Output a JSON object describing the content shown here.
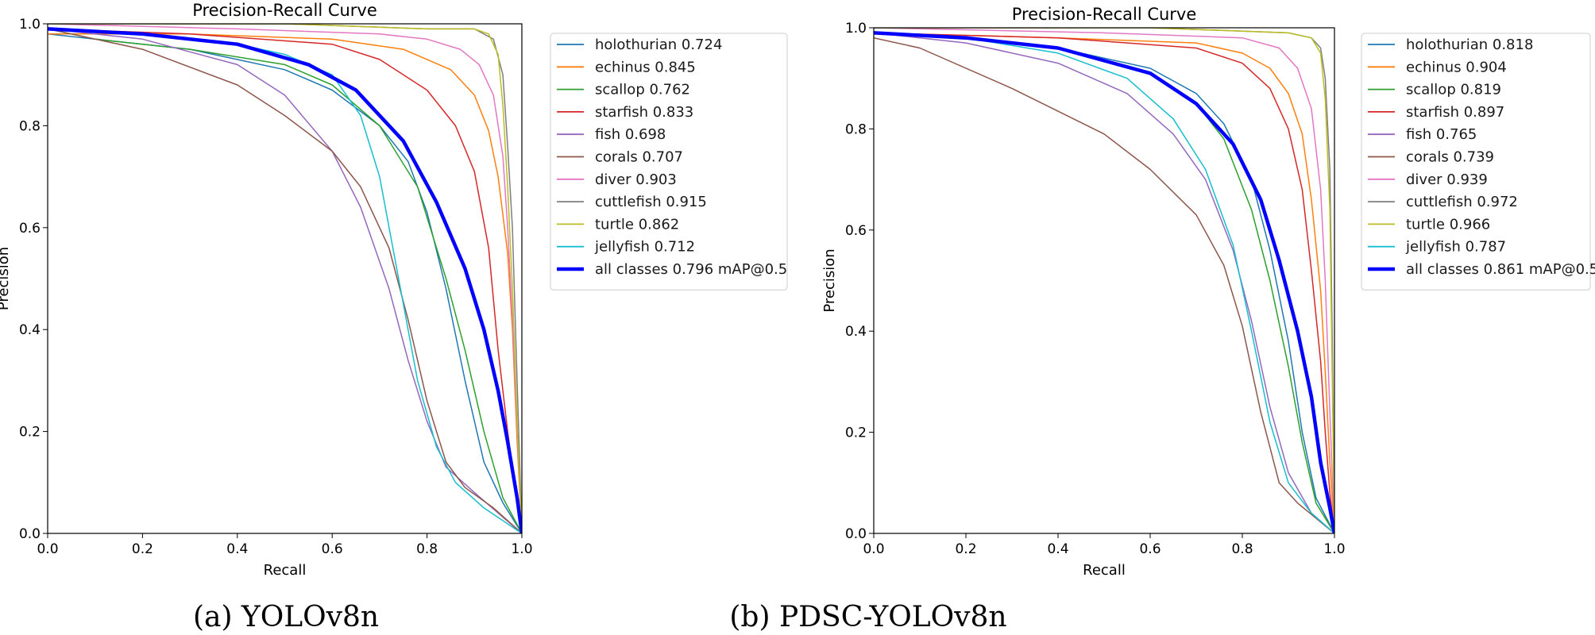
{
  "captions": [
    "(a) YOLOv8n",
    "(b) PDSC-YOLOv8n"
  ],
  "chart_data": [
    {
      "type": "line",
      "title": "Precision-Recall Curve",
      "xlabel": "Recall",
      "ylabel": "Precision",
      "xlim": [
        0,
        1
      ],
      "ylim": [
        0,
        1
      ],
      "xticks": [
        "0.0",
        "0.2",
        "0.4",
        "0.6",
        "0.8",
        "1.0"
      ],
      "yticks": [
        "0.0",
        "0.2",
        "0.4",
        "0.6",
        "0.8",
        "1.0"
      ],
      "legend_position": "outside-right-top",
      "series": [
        {
          "name": "holothurian",
          "label": "holothurian 0.724",
          "color": "#1f77b4",
          "width": 1.5,
          "x": [
            0,
            0.1,
            0.3,
            0.5,
            0.6,
            0.7,
            0.76,
            0.8,
            0.84,
            0.88,
            0.92,
            0.96,
            1.0
          ],
          "y": [
            0.98,
            0.97,
            0.95,
            0.91,
            0.87,
            0.8,
            0.73,
            0.63,
            0.48,
            0.3,
            0.14,
            0.06,
            0
          ]
        },
        {
          "name": "echinus",
          "label": "echinus 0.845",
          "color": "#ff7f0e",
          "width": 1.5,
          "x": [
            0,
            0.3,
            0.6,
            0.75,
            0.85,
            0.9,
            0.93,
            0.95,
            0.97,
            0.98,
            0.99,
            1.0
          ],
          "y": [
            0.98,
            0.98,
            0.97,
            0.95,
            0.91,
            0.86,
            0.79,
            0.7,
            0.55,
            0.4,
            0.18,
            0
          ]
        },
        {
          "name": "scallop",
          "label": "scallop 0.762",
          "color": "#2ca02c",
          "width": 1.5,
          "x": [
            0,
            0.1,
            0.3,
            0.5,
            0.6,
            0.7,
            0.78,
            0.84,
            0.88,
            0.92,
            0.96,
            1.0
          ],
          "y": [
            0.99,
            0.97,
            0.95,
            0.92,
            0.88,
            0.8,
            0.68,
            0.5,
            0.36,
            0.2,
            0.07,
            0
          ]
        },
        {
          "name": "starfish",
          "label": "starfish 0.833",
          "color": "#d62728",
          "width": 1.5,
          "x": [
            0,
            0.3,
            0.6,
            0.7,
            0.8,
            0.86,
            0.9,
            0.93,
            0.95,
            0.97,
            0.99,
            1.0
          ],
          "y": [
            0.99,
            0.98,
            0.96,
            0.93,
            0.87,
            0.8,
            0.71,
            0.56,
            0.36,
            0.2,
            0.06,
            0
          ]
        },
        {
          "name": "fish",
          "label": "fish 0.698",
          "color": "#9467bd",
          "width": 1.5,
          "x": [
            0,
            0.2,
            0.4,
            0.5,
            0.6,
            0.66,
            0.72,
            0.76,
            0.8,
            0.84,
            0.9,
            0.95,
            1.0
          ],
          "y": [
            0.99,
            0.97,
            0.92,
            0.86,
            0.75,
            0.64,
            0.48,
            0.34,
            0.22,
            0.13,
            0.08,
            0.04,
            0
          ]
        },
        {
          "name": "corals",
          "label": "corals 0.707",
          "color": "#8c564b",
          "width": 1.5,
          "x": [
            0,
            0.2,
            0.4,
            0.5,
            0.6,
            0.66,
            0.72,
            0.76,
            0.8,
            0.84,
            0.88,
            0.94,
            1.0
          ],
          "y": [
            0.99,
            0.95,
            0.88,
            0.82,
            0.75,
            0.68,
            0.56,
            0.42,
            0.26,
            0.14,
            0.09,
            0.05,
            0
          ]
        },
        {
          "name": "diver",
          "label": "diver 0.903",
          "color": "#e377c2",
          "width": 1.5,
          "x": [
            0,
            0.4,
            0.7,
            0.8,
            0.87,
            0.91,
            0.94,
            0.96,
            0.97,
            0.98,
            0.99,
            1.0
          ],
          "y": [
            1.0,
            0.99,
            0.98,
            0.97,
            0.95,
            0.92,
            0.86,
            0.74,
            0.6,
            0.42,
            0.2,
            0
          ]
        },
        {
          "name": "cuttlefish",
          "label": "cuttlefish 0.915",
          "color": "#7f7f7f",
          "width": 1.5,
          "x": [
            0,
            0.5,
            0.8,
            0.9,
            0.94,
            0.96,
            0.97,
            0.98,
            0.99,
            1.0
          ],
          "y": [
            1.0,
            1.0,
            0.99,
            0.99,
            0.97,
            0.9,
            0.76,
            0.6,
            0.3,
            0
          ]
        },
        {
          "name": "turtle",
          "label": "turtle 0.862",
          "color": "#bcbd22",
          "width": 1.5,
          "x": [
            0,
            0.5,
            0.8,
            0.9,
            0.93,
            0.95,
            0.96,
            0.97,
            0.98,
            0.99,
            1.0
          ],
          "y": [
            1.0,
            1.0,
            0.99,
            0.99,
            0.98,
            0.94,
            0.84,
            0.68,
            0.48,
            0.22,
            0
          ]
        },
        {
          "name": "jellyfish",
          "label": "jellyfish 0.712",
          "color": "#17becf",
          "width": 1.5,
          "x": [
            0,
            0.2,
            0.4,
            0.5,
            0.6,
            0.66,
            0.7,
            0.74,
            0.78,
            0.82,
            0.86,
            0.92,
            1.0
          ],
          "y": [
            0.99,
            0.98,
            0.96,
            0.94,
            0.9,
            0.82,
            0.7,
            0.5,
            0.3,
            0.17,
            0.1,
            0.05,
            0
          ]
        },
        {
          "name": "all classes",
          "label": "all classes 0.796 mAP@0.5",
          "color": "#0000ff",
          "width": 4.5,
          "x": [
            0,
            0.2,
            0.4,
            0.55,
            0.65,
            0.75,
            0.82,
            0.88,
            0.92,
            0.95,
            0.97,
            0.99,
            1.0
          ],
          "y": [
            0.99,
            0.98,
            0.96,
            0.92,
            0.87,
            0.77,
            0.65,
            0.52,
            0.4,
            0.28,
            0.18,
            0.07,
            0
          ]
        }
      ]
    },
    {
      "type": "line",
      "title": "Precision-Recall Curve",
      "xlabel": "Recall",
      "ylabel": "Precision",
      "xlim": [
        0,
        1
      ],
      "ylim": [
        0,
        1
      ],
      "xticks": [
        "0.0",
        "0.2",
        "0.4",
        "0.6",
        "0.8",
        "1.0"
      ],
      "yticks": [
        "0.0",
        "0.2",
        "0.4",
        "0.6",
        "0.8",
        "1.0"
      ],
      "legend_position": "outside-right-top",
      "series": [
        {
          "name": "holothurian",
          "label": "holothurian 0.818",
          "color": "#1f77b4",
          "width": 1.5,
          "x": [
            0,
            0.2,
            0.4,
            0.6,
            0.7,
            0.76,
            0.82,
            0.86,
            0.9,
            0.93,
            0.96,
            1.0
          ],
          "y": [
            0.99,
            0.98,
            0.96,
            0.92,
            0.87,
            0.81,
            0.7,
            0.56,
            0.38,
            0.2,
            0.07,
            0
          ]
        },
        {
          "name": "echinus",
          "label": "echinus 0.904",
          "color": "#ff7f0e",
          "width": 1.5,
          "x": [
            0,
            0.4,
            0.7,
            0.8,
            0.86,
            0.9,
            0.93,
            0.95,
            0.97,
            0.98,
            0.99,
            1.0
          ],
          "y": [
            0.99,
            0.98,
            0.97,
            0.95,
            0.92,
            0.87,
            0.79,
            0.66,
            0.48,
            0.32,
            0.14,
            0
          ]
        },
        {
          "name": "scallop",
          "label": "scallop 0.819",
          "color": "#2ca02c",
          "width": 1.5,
          "x": [
            0,
            0.2,
            0.4,
            0.6,
            0.7,
            0.76,
            0.82,
            0.86,
            0.9,
            0.93,
            0.96,
            1.0
          ],
          "y": [
            0.99,
            0.98,
            0.96,
            0.91,
            0.85,
            0.78,
            0.64,
            0.5,
            0.33,
            0.18,
            0.06,
            0
          ]
        },
        {
          "name": "starfish",
          "label": "starfish 0.897",
          "color": "#d62728",
          "width": 1.5,
          "x": [
            0,
            0.4,
            0.7,
            0.8,
            0.86,
            0.9,
            0.93,
            0.95,
            0.97,
            0.98,
            0.99,
            1.0
          ],
          "y": [
            0.99,
            0.98,
            0.96,
            0.93,
            0.88,
            0.8,
            0.68,
            0.52,
            0.34,
            0.2,
            0.08,
            0
          ]
        },
        {
          "name": "fish",
          "label": "fish 0.765",
          "color": "#9467bd",
          "width": 1.5,
          "x": [
            0,
            0.2,
            0.4,
            0.55,
            0.65,
            0.72,
            0.78,
            0.82,
            0.86,
            0.9,
            0.95,
            1.0
          ],
          "y": [
            0.99,
            0.97,
            0.93,
            0.87,
            0.79,
            0.7,
            0.56,
            0.42,
            0.25,
            0.12,
            0.04,
            0
          ]
        },
        {
          "name": "corals",
          "label": "corals 0.739",
          "color": "#8c564b",
          "width": 1.5,
          "x": [
            0,
            0.1,
            0.3,
            0.5,
            0.6,
            0.7,
            0.76,
            0.8,
            0.84,
            0.88,
            0.92,
            0.96,
            1.0
          ],
          "y": [
            0.98,
            0.96,
            0.88,
            0.79,
            0.72,
            0.63,
            0.53,
            0.41,
            0.24,
            0.1,
            0.06,
            0.03,
            0
          ]
        },
        {
          "name": "diver",
          "label": "diver 0.939",
          "color": "#e377c2",
          "width": 1.5,
          "x": [
            0,
            0.5,
            0.8,
            0.88,
            0.92,
            0.95,
            0.97,
            0.98,
            0.99,
            1.0
          ],
          "y": [
            1.0,
            0.99,
            0.98,
            0.96,
            0.92,
            0.84,
            0.68,
            0.5,
            0.24,
            0
          ]
        },
        {
          "name": "cuttlefish",
          "label": "cuttlefish 0.972",
          "color": "#7f7f7f",
          "width": 1.5,
          "x": [
            0,
            0.6,
            0.9,
            0.95,
            0.97,
            0.98,
            0.99,
            0.995,
            1.0
          ],
          "y": [
            1.0,
            1.0,
            0.99,
            0.98,
            0.96,
            0.9,
            0.72,
            0.4,
            0
          ]
        },
        {
          "name": "turtle",
          "label": "turtle 0.966",
          "color": "#bcbd22",
          "width": 1.5,
          "x": [
            0,
            0.6,
            0.9,
            0.95,
            0.97,
            0.98,
            0.99,
            0.995,
            1.0
          ],
          "y": [
            1.0,
            1.0,
            0.99,
            0.98,
            0.95,
            0.86,
            0.64,
            0.32,
            0
          ]
        },
        {
          "name": "jellyfish",
          "label": "jellyfish 0.787",
          "color": "#17becf",
          "width": 1.5,
          "x": [
            0,
            0.2,
            0.4,
            0.55,
            0.65,
            0.72,
            0.78,
            0.82,
            0.86,
            0.9,
            0.95,
            1.0
          ],
          "y": [
            0.99,
            0.98,
            0.95,
            0.9,
            0.82,
            0.72,
            0.57,
            0.4,
            0.22,
            0.1,
            0.04,
            0
          ]
        },
        {
          "name": "all classes",
          "label": "all classes 0.861 mAP@0.5",
          "color": "#0000ff",
          "width": 4.5,
          "x": [
            0,
            0.2,
            0.4,
            0.6,
            0.7,
            0.78,
            0.84,
            0.88,
            0.92,
            0.95,
            0.97,
            0.99,
            1.0
          ],
          "y": [
            0.99,
            0.98,
            0.96,
            0.91,
            0.85,
            0.77,
            0.66,
            0.54,
            0.4,
            0.27,
            0.14,
            0.05,
            0
          ]
        }
      ]
    }
  ]
}
